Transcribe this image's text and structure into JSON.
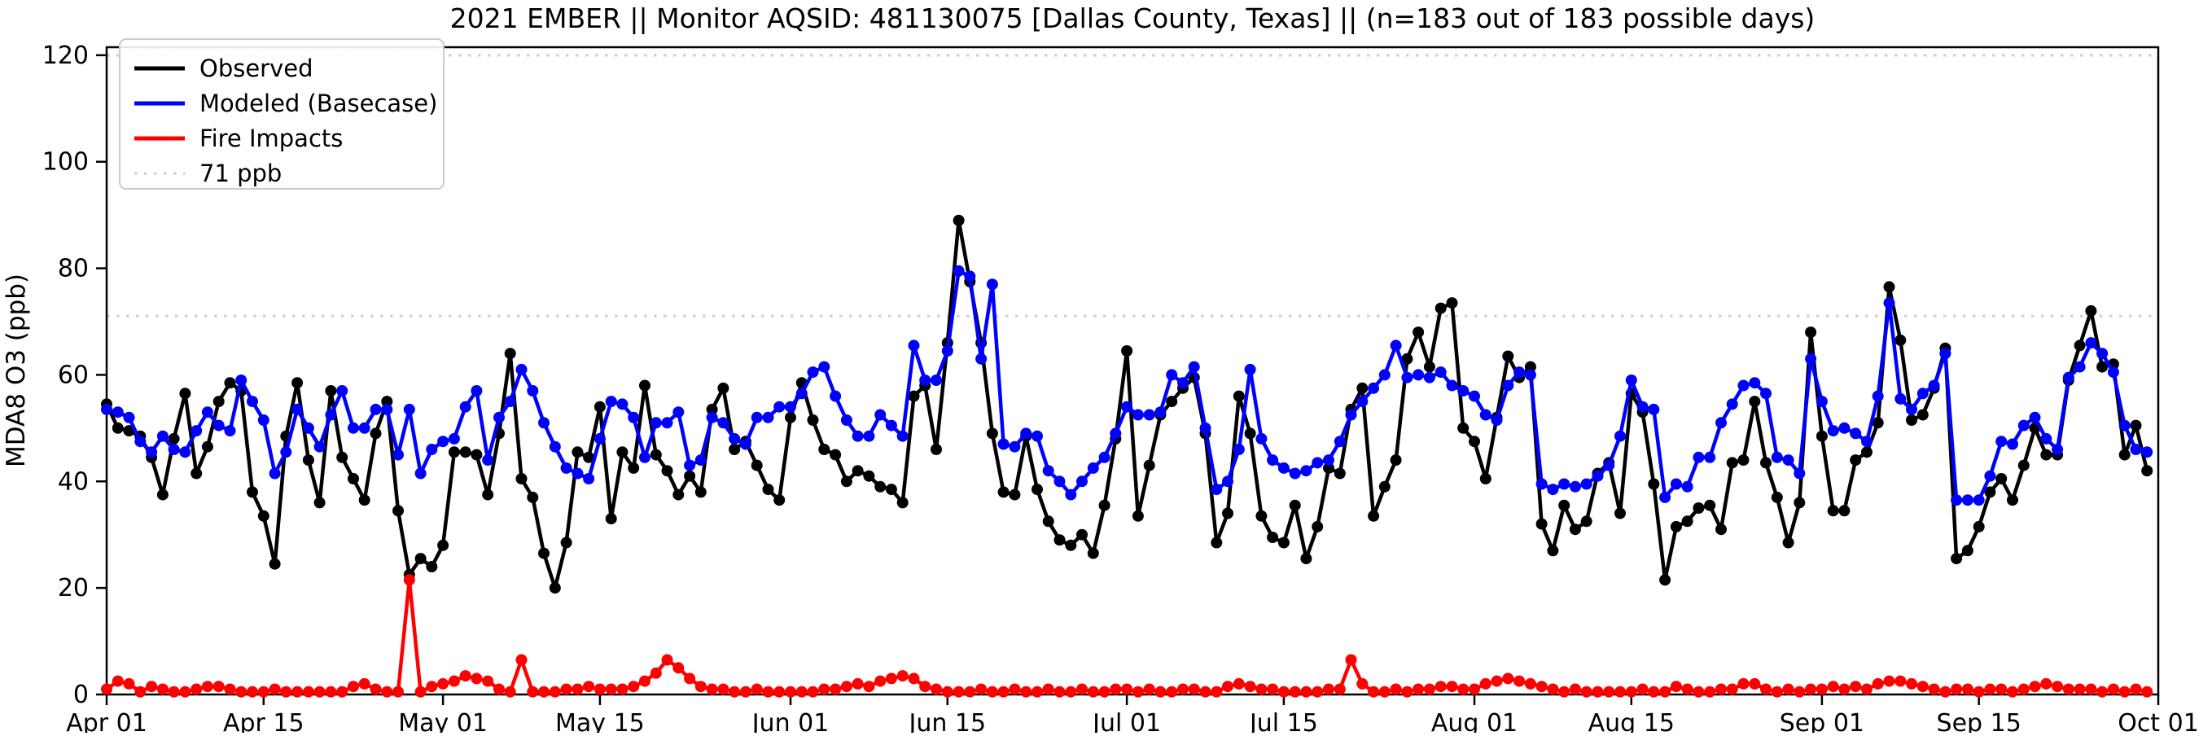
{
  "chart_data": {
    "type": "line",
    "title": "2021 EMBER || Monitor AQSID: 481130075 [Dallas County, Texas] || (n=183 out of 183 possible days)",
    "xlabel": "",
    "ylabel": "MDA8 O3 (ppb)",
    "ylim": [
      0,
      120
    ],
    "n_days": 183,
    "date_range": [
      "Apr 01",
      "Oct 01"
    ],
    "grid": false,
    "legend_position": "upper left",
    "y_ticks": [
      0,
      20,
      40,
      60,
      80,
      100,
      120
    ],
    "x_ticks": [
      {
        "label": "Apr 01",
        "day": 0
      },
      {
        "label": "Apr 15",
        "day": 14
      },
      {
        "label": "May 01",
        "day": 30
      },
      {
        "label": "May 15",
        "day": 44
      },
      {
        "label": "Jun 01",
        "day": 61
      },
      {
        "label": "Jun 15",
        "day": 75
      },
      {
        "label": "Jul 01",
        "day": 91
      },
      {
        "label": "Jul 15",
        "day": 105
      },
      {
        "label": "Aug 01",
        "day": 122
      },
      {
        "label": "Aug 15",
        "day": 136
      },
      {
        "label": "Sep 01",
        "day": 153
      },
      {
        "label": "Sep 15",
        "day": 167
      },
      {
        "label": "Oct 01",
        "day": 183
      }
    ],
    "threshold_lines": [
      {
        "value": 71,
        "label": "71 ppb",
        "color": "#d3d3d3",
        "style": "dotted",
        "in_legend": true
      },
      {
        "value": 120,
        "label": "",
        "color": "#d3d3d3",
        "style": "dotted",
        "in_legend": false
      }
    ],
    "series": [
      {
        "name": "Observed",
        "color": "#000000",
        "marker": "circle",
        "values": [
          54.5,
          50,
          49.5,
          48.5,
          44.5,
          37.5,
          48,
          56.5,
          41.5,
          46.5,
          55,
          58.5,
          57,
          38,
          33.5,
          24.5,
          48.5,
          58.5,
          44,
          36,
          57,
          44.5,
          40.5,
          36.5,
          49,
          55,
          34.5,
          22.5,
          25.5,
          24,
          28,
          45.5,
          45.5,
          45,
          37.5,
          49,
          64,
          40.5,
          37,
          26.5,
          20,
          28.5,
          45.5,
          44.5,
          54,
          33,
          45.5,
          42.5,
          58,
          45,
          42,
          37.5,
          41,
          38,
          53.5,
          57.5,
          46,
          47.5,
          43,
          38.5,
          36.5,
          52,
          58.5,
          51.5,
          46,
          45,
          40,
          42,
          41,
          39,
          38.5,
          36,
          56,
          58,
          46,
          66,
          89,
          77.5,
          66,
          49,
          38,
          37.5,
          48.5,
          38.5,
          32.5,
          29,
          28,
          30,
          26.5,
          35.5,
          48,
          64.5,
          33.5,
          43,
          52.5,
          55,
          57.5,
          59.5,
          49,
          28.5,
          34,
          56,
          49,
          33.5,
          29.5,
          28.5,
          35.5,
          25.5,
          31.5,
          42.5,
          41.5,
          53.5,
          57.5,
          33.5,
          39,
          44,
          63,
          68,
          61.5,
          72.5,
          73.5,
          50,
          47.5,
          40.5,
          52,
          63.5,
          59.5,
          61.5,
          32,
          27,
          35.5,
          31,
          32.5,
          41.5,
          43.5,
          34,
          56.5,
          53,
          39.5,
          21.5,
          31.5,
          32.5,
          35,
          35.5,
          31,
          43.5,
          44,
          55,
          43.5,
          37,
          28.5,
          36,
          68,
          48.5,
          34.5,
          34.5,
          44,
          45.5,
          51,
          76.5,
          66.5,
          51.5,
          52.5,
          57.5,
          65,
          25.5,
          27,
          31.5,
          38,
          40.5,
          36.5,
          43,
          50,
          45,
          45,
          59,
          65.5,
          72,
          61.5,
          62,
          45,
          50.5,
          42
        ]
      },
      {
        "name": "Modeled (Basecase)",
        "color": "#0000ff",
        "marker": "circle",
        "values": [
          53.5,
          53,
          52,
          47.5,
          45.5,
          48.5,
          46,
          45.5,
          49.5,
          53,
          50.5,
          49.5,
          59,
          55,
          51.5,
          41.5,
          45.5,
          53.5,
          50,
          46.5,
          52.5,
          57,
          50,
          50,
          53.5,
          53.5,
          45,
          53.5,
          41.5,
          46,
          47.5,
          48,
          54,
          57,
          44,
          52,
          55,
          61,
          57,
          51,
          46.5,
          42.5,
          41.5,
          40.5,
          48,
          55,
          54.5,
          52,
          44.5,
          51,
          51,
          53,
          43,
          44,
          52,
          51,
          48,
          47,
          52,
          52,
          54,
          54,
          56.5,
          60.5,
          61.5,
          56,
          51.5,
          48.5,
          48.5,
          52.5,
          50.5,
          48.5,
          65.5,
          59,
          59,
          64.5,
          79.5,
          78.5,
          63,
          77,
          47,
          46.5,
          49,
          48.5,
          42,
          40,
          37.5,
          40,
          42.5,
          44.5,
          49,
          54,
          52.5,
          52.5,
          53,
          60,
          58.5,
          61.5,
          50,
          38.5,
          40,
          46,
          61,
          48,
          44,
          42.5,
          41.5,
          42,
          43.5,
          44,
          47.5,
          52.5,
          55,
          57.5,
          60,
          65.5,
          59.5,
          60,
          59.5,
          60.5,
          58,
          57,
          56,
          52.5,
          51.5,
          58,
          60.5,
          60,
          39.5,
          38.5,
          39.5,
          39,
          39.5,
          41,
          43,
          48.5,
          59,
          54,
          53.5,
          37,
          39.5,
          39,
          44.5,
          44.5,
          51,
          54.5,
          58,
          58.5,
          56.5,
          44.5,
          44,
          41.5,
          63,
          55,
          49.5,
          50,
          49,
          47.5,
          56,
          73.5,
          55.5,
          53.5,
          56.5,
          58,
          64,
          36.5,
          36.5,
          36.5,
          41,
          47.5,
          47,
          50.5,
          52,
          48,
          46,
          59.5,
          61.5,
          66,
          64,
          60.5,
          50.5,
          46,
          45.5
        ]
      },
      {
        "name": "Fire Impacts",
        "color": "#ff0000",
        "marker": "circle",
        "values": [
          1,
          2.5,
          2,
          0.5,
          1.5,
          1,
          0.5,
          0.5,
          1,
          1.5,
          1.5,
          1,
          0.5,
          0.5,
          0.5,
          1,
          0.5,
          0.5,
          0.5,
          0.5,
          0.5,
          0.5,
          1.5,
          2,
          1,
          0.5,
          0.5,
          21.5,
          0.5,
          1.5,
          2,
          2.5,
          3.5,
          3,
          2.5,
          1,
          0.5,
          6.5,
          0.5,
          0.5,
          0.5,
          1,
          1,
          1.5,
          1,
          1,
          1,
          1.5,
          2.5,
          4,
          6.5,
          5,
          3,
          1.5,
          1,
          1,
          0.5,
          0.5,
          1,
          0.5,
          0.5,
          0.5,
          0.5,
          0.5,
          1,
          1,
          1.5,
          2,
          1.5,
          2.5,
          3,
          3.5,
          3,
          1.5,
          1,
          0.5,
          0.5,
          0.5,
          1,
          0.5,
          0.5,
          1,
          0.5,
          0.5,
          1,
          0.5,
          0.5,
          1,
          0.5,
          0.5,
          1,
          1,
          0.5,
          1,
          0.5,
          0.5,
          1,
          1,
          0.5,
          0.5,
          1.5,
          2,
          1.5,
          1,
          1,
          0.5,
          0.5,
          0.5,
          0.5,
          1,
          1,
          6.5,
          2,
          0.5,
          0.5,
          1,
          0.5,
          1,
          1,
          1.5,
          1.5,
          1,
          1,
          2,
          2.5,
          3,
          2.5,
          2,
          1.5,
          1,
          0.5,
          1,
          0.5,
          0.5,
          0.5,
          0.5,
          0.5,
          1,
          0.5,
          0.5,
          1.5,
          1,
          0.5,
          0.5,
          1,
          1,
          2,
          2,
          1,
          0.5,
          1,
          0.5,
          1,
          1,
          1.5,
          1,
          1.5,
          1,
          2,
          2.5,
          2.5,
          2,
          1.5,
          1,
          0.5,
          1,
          1,
          0.5,
          1,
          1,
          0.5,
          1,
          1.5,
          2,
          1.5,
          1,
          1,
          1,
          0.5,
          1,
          0.5,
          1,
          0.5
        ]
      }
    ],
    "legend_entries": [
      "Observed",
      "Modeled (Basecase)",
      "Fire Impacts",
      "71 ppb"
    ]
  },
  "style": {
    "background": "#ffffff",
    "spine_color": "#000000",
    "threshold_color": "#d3d3d3"
  }
}
